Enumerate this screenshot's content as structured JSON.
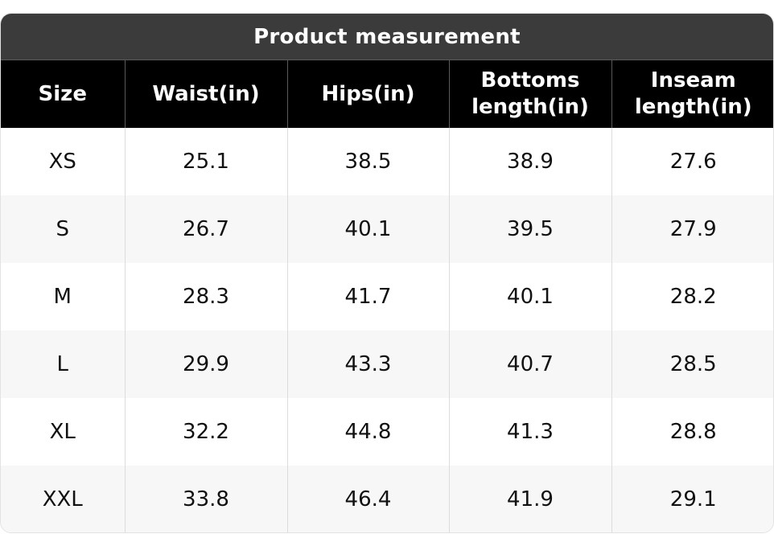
{
  "title": "Product measurement",
  "columns": [
    "Size",
    "Waist(in)",
    "Hips(in)",
    "Bottoms\nlength(in)",
    "Inseam\nlength(in)"
  ],
  "rows": [
    [
      "XS",
      "25.1",
      "38.5",
      "38.9",
      "27.6"
    ],
    [
      "S",
      "26.7",
      "40.1",
      "39.5",
      "27.9"
    ],
    [
      "M",
      "28.3",
      "41.7",
      "40.1",
      "28.2"
    ],
    [
      "L",
      "29.9",
      "43.3",
      "40.7",
      "28.5"
    ],
    [
      "XL",
      "32.2",
      "44.8",
      "41.3",
      "28.8"
    ],
    [
      "XXL",
      "33.8",
      "46.4",
      "41.9",
      "29.1"
    ]
  ],
  "colors": {
    "title_bg": "#3b3b3b",
    "header_bg": "#000000",
    "row_alt_bg": "#f7f7f7"
  }
}
